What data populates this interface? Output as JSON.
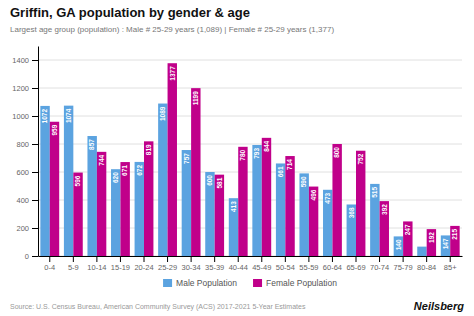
{
  "chart_data": {
    "type": "bar",
    "title": "Griffin, GA population by gender & age",
    "subtitle": "Largest age group (population) : Male # 25-29 years (1,089) | Female # 25-29 years (1,377)",
    "categories": [
      "0-4",
      "5-9",
      "10-14",
      "15-19",
      "20-24",
      "25-29",
      "30-34",
      "35-39",
      "40-44",
      "45-49",
      "50-54",
      "55-59",
      "60-64",
      "65-69",
      "70-74",
      "75-79",
      "80-84",
      "85+"
    ],
    "series": [
      {
        "name": "Male Population",
        "color": "#5ba3e0",
        "values": [
          1072,
          1074,
          857,
          620,
          672,
          1089,
          757,
          600,
          413,
          793,
          661,
          590,
          473,
          368,
          515,
          140,
          67,
          147
        ],
        "value_labels": [
          "1072",
          "1074",
          "857",
          "620",
          "672",
          "1089",
          "757",
          "600",
          "413",
          "793",
          "661",
          "590",
          "473",
          "368",
          "515",
          "140",
          null,
          "147"
        ]
      },
      {
        "name": "Female Population",
        "color": "#c0008a",
        "values": [
          959,
          596,
          744,
          671,
          819,
          1377,
          1199,
          581,
          780,
          844,
          714,
          496,
          800,
          752,
          392,
          247,
          192,
          215
        ],
        "value_labels": [
          "959",
          "596",
          "744",
          "671",
          "819",
          "1377",
          "1199",
          "581",
          "780",
          "844",
          "714",
          "496",
          "800",
          "752",
          "392",
          "247",
          "192",
          "215"
        ]
      }
    ],
    "ylim": [
      0,
      1500
    ],
    "yticks": [
      0,
      200,
      400,
      600,
      800,
      1000,
      1200,
      1400
    ],
    "grid": true,
    "legend": "bottom",
    "data_labels": true,
    "annotations": [
      "Source: U.S. Census Bureau, American Community Survey (ACS) 2017-2021 5-Year Estimates",
      "Neilsberg"
    ]
  }
}
